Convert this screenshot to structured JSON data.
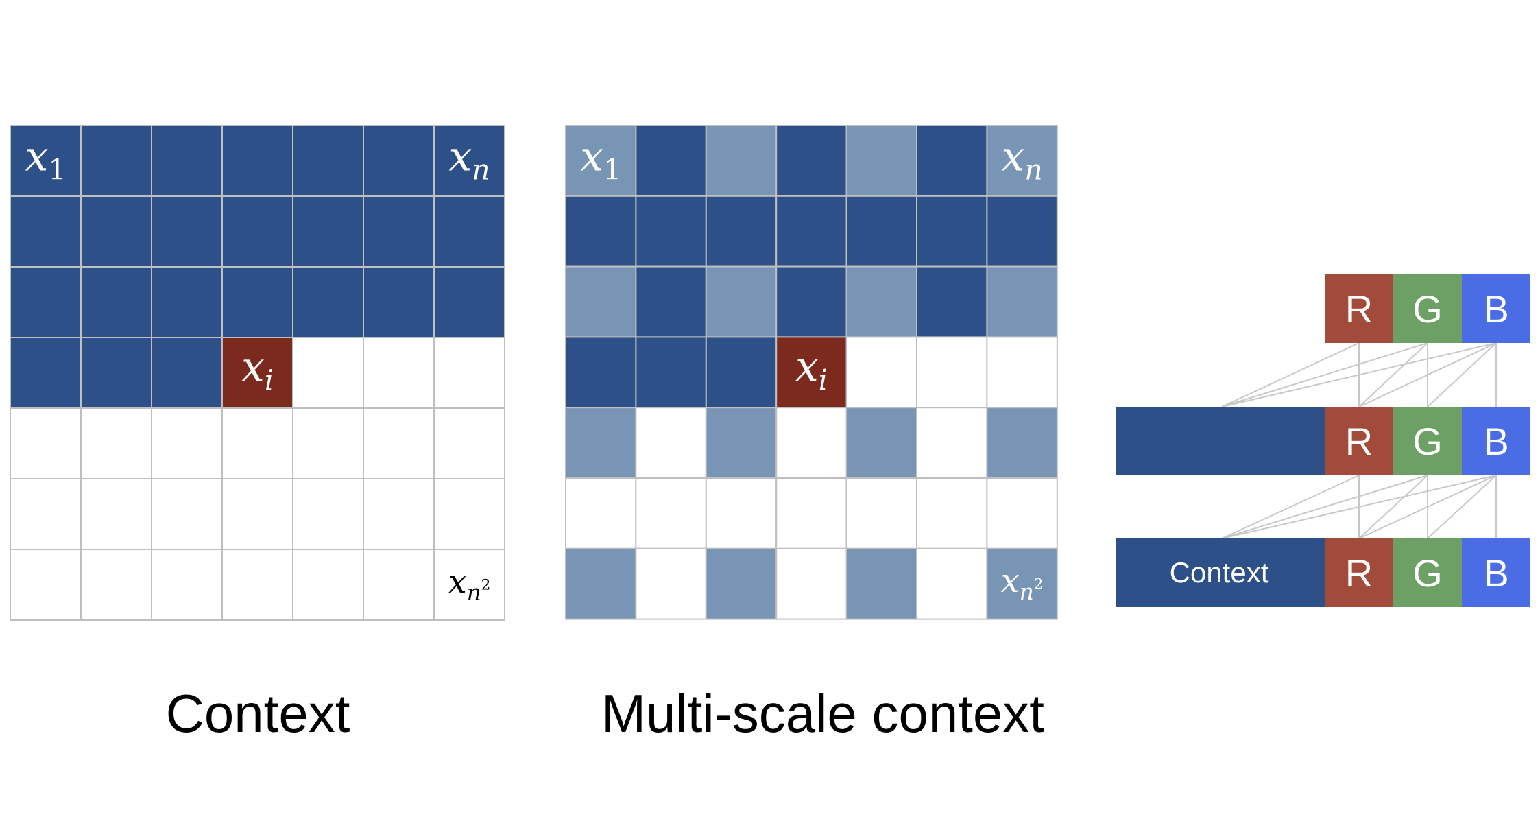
{
  "colors": {
    "dark_blue": "#2e5088",
    "light_blue": "#7895b6",
    "white": "#ffffff",
    "red": "#7d2a1e",
    "grid_line": "#bfbfbf",
    "r_channel": "#a34b3a",
    "g_channel": "#6da064",
    "b_channel": "#4a6de6",
    "connector": "#c8c8c8"
  },
  "context_grid": {
    "caption": "Context",
    "cells": [
      [
        "D",
        "D",
        "D",
        "D",
        "D",
        "D",
        "D"
      ],
      [
        "D",
        "D",
        "D",
        "D",
        "D",
        "D",
        "D"
      ],
      [
        "D",
        "D",
        "D",
        "D",
        "D",
        "D",
        "D"
      ],
      [
        "D",
        "D",
        "D",
        "R",
        "W",
        "W",
        "W"
      ],
      [
        "W",
        "W",
        "W",
        "W",
        "W",
        "W",
        "W"
      ],
      [
        "W",
        "W",
        "W",
        "W",
        "W",
        "W",
        "W"
      ],
      [
        "W",
        "W",
        "W",
        "W",
        "W",
        "W",
        "W"
      ]
    ]
  },
  "multiscale_grid": {
    "caption": "Multi-scale context",
    "cells": [
      [
        "L",
        "D",
        "L",
        "D",
        "L",
        "D",
        "L"
      ],
      [
        "D",
        "D",
        "D",
        "D",
        "D",
        "D",
        "D"
      ],
      [
        "L",
        "D",
        "L",
        "D",
        "L",
        "D",
        "L"
      ],
      [
        "D",
        "D",
        "D",
        "R",
        "W",
        "W",
        "W"
      ],
      [
        "L",
        "W",
        "L",
        "W",
        "L",
        "W",
        "L"
      ],
      [
        "W",
        "W",
        "W",
        "W",
        "W",
        "W",
        "W"
      ],
      [
        "L",
        "W",
        "L",
        "W",
        "L",
        "W",
        "L"
      ]
    ]
  },
  "grid_labels": {
    "first": {
      "base": "x",
      "sub": "1"
    },
    "last_in_row": {
      "base": "x",
      "sub": "n"
    },
    "current": {
      "base": "x",
      "sub": "i"
    },
    "final": {
      "base": "x",
      "sub": "n",
      "sup": "2"
    }
  },
  "channel_stack": {
    "channels": [
      "R",
      "G",
      "B"
    ],
    "context_label": "Context"
  }
}
